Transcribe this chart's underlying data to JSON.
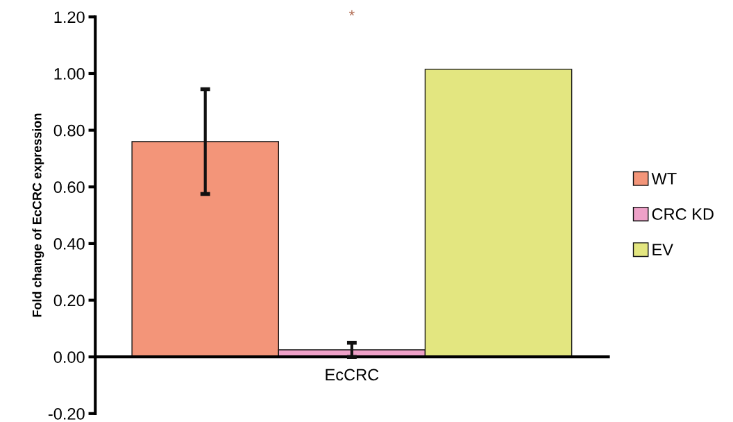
{
  "chart_data": {
    "type": "bar",
    "ylabel": "Fold change of EcCRC expression",
    "categories": [
      "EcCRC"
    ],
    "series": [
      {
        "name": "WT",
        "color": "#f39579",
        "values": [
          0.76
        ],
        "errors": [
          0.185
        ]
      },
      {
        "name": "CRC KD",
        "color": "#eea1c8",
        "values": [
          0.025
        ],
        "errors": [
          0.025
        ]
      },
      {
        "name": "EV",
        "color": "#e3e680",
        "values": [
          1.015
        ]
      }
    ],
    "ylim": [
      -0.2,
      1.2
    ],
    "yticks": [
      {
        "value": -0.2,
        "label": "-0.20"
      },
      {
        "value": 0,
        "label": "0.00"
      },
      {
        "value": 0.2,
        "label": "0.20"
      },
      {
        "value": 0.4,
        "label": "0.40"
      },
      {
        "value": 0.6,
        "label": "0.60"
      },
      {
        "value": 0.8,
        "label": "0.80"
      },
      {
        "value": 1.0,
        "label": "1.00"
      },
      {
        "value": 1.2,
        "label": "1.20"
      }
    ],
    "annotations": [
      "*"
    ],
    "legend": "right"
  }
}
